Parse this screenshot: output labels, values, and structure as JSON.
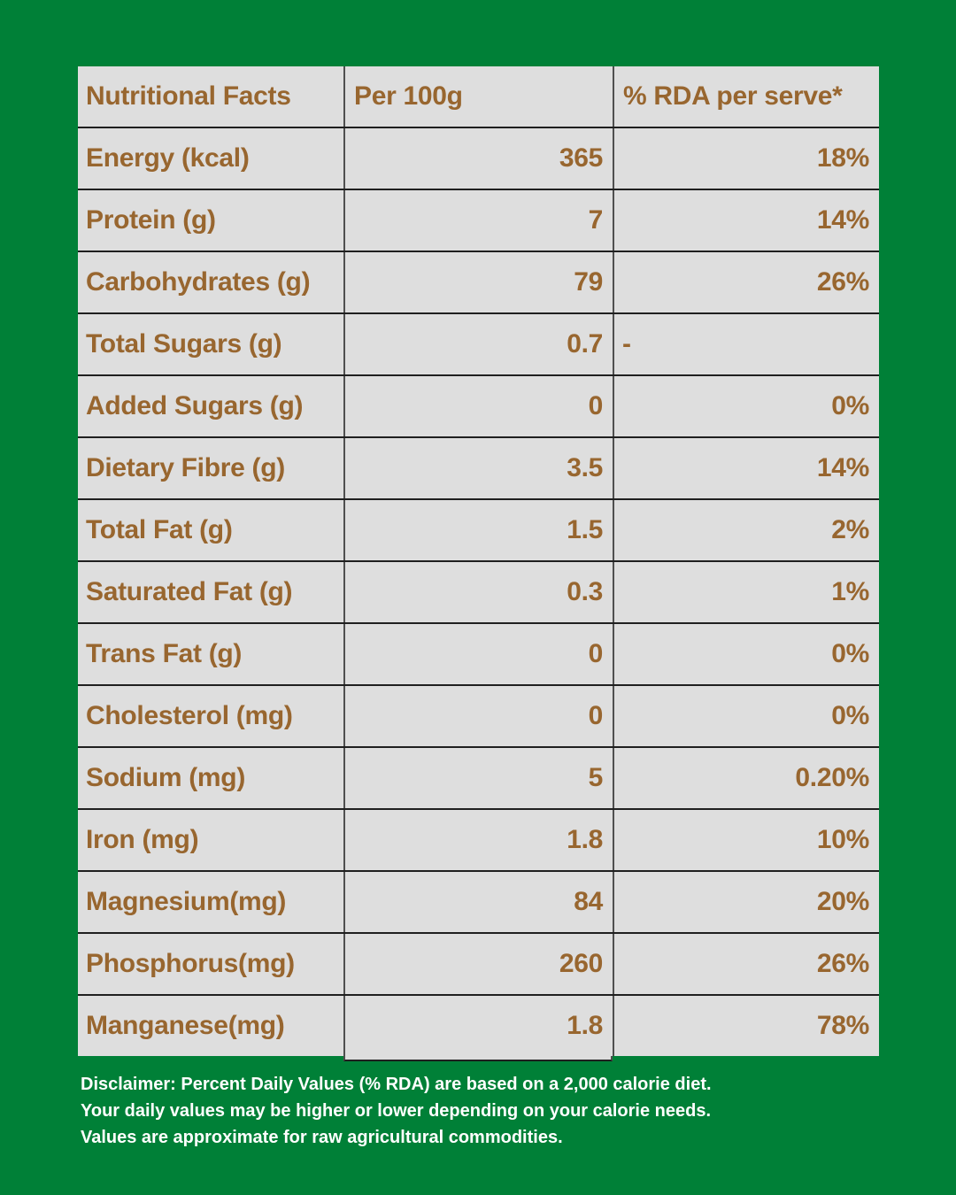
{
  "colors": {
    "background_green": "#008037",
    "cell_gray": "#DEDEDE",
    "text_brown": "#98662F",
    "row_line_dark": "#1F1F1F",
    "column_line_gray": "#4F4F4F",
    "disclaimer_white": "#FFFFFF"
  },
  "table": {
    "header": {
      "col1": "Nutritional Facts",
      "col2": "Per 100g",
      "col3": "% RDA per serve*"
    },
    "rows": [
      {
        "nutrient": "Energy (kcal)",
        "per_100g": "365",
        "rda_per_serve": "18%"
      },
      {
        "nutrient": "Protein (g)",
        "per_100g": "7",
        "rda_per_serve": "14%"
      },
      {
        "nutrient": "Carbohydrates (g)",
        "per_100g": "79",
        "rda_per_serve": "26%"
      },
      {
        "nutrient": "Total Sugars (g)",
        "per_100g": "0.7",
        "rda_per_serve": "-"
      },
      {
        "nutrient": "Added Sugars (g)",
        "per_100g": "0",
        "rda_per_serve": "0%"
      },
      {
        "nutrient": "Dietary Fibre (g)",
        "per_100g": "3.5",
        "rda_per_serve": "14%"
      },
      {
        "nutrient": "Total Fat (g)",
        "per_100g": "1.5",
        "rda_per_serve": "2%"
      },
      {
        "nutrient": "Saturated Fat (g)",
        "per_100g": "0.3",
        "rda_per_serve": "1%"
      },
      {
        "nutrient": "Trans Fat (g)",
        "per_100g": "0",
        "rda_per_serve": "0%"
      },
      {
        "nutrient": "Cholesterol (mg)",
        "per_100g": "0",
        "rda_per_serve": "0%"
      },
      {
        "nutrient": "Sodium (mg)",
        "per_100g": "5",
        "rda_per_serve": "0.20%"
      },
      {
        "nutrient": "Iron (mg)",
        "per_100g": "1.8",
        "rda_per_serve": "10%"
      },
      {
        "nutrient": "Magnesium(mg)",
        "per_100g": "84",
        "rda_per_serve": "20%"
      },
      {
        "nutrient": "Phosphorus(mg)",
        "per_100g": "260",
        "rda_per_serve": "26%"
      },
      {
        "nutrient": "Manganese(mg)",
        "per_100g": "1.8",
        "rda_per_serve": "78%"
      }
    ]
  },
  "disclaimer": {
    "line1": "Disclaimer: Percent Daily Values (% RDA) are based on a 2,000 calorie diet.",
    "line2": "Your daily values may be higher or lower depending on your calorie needs.",
    "line3": "Values are approximate for raw agricultural commodities."
  }
}
